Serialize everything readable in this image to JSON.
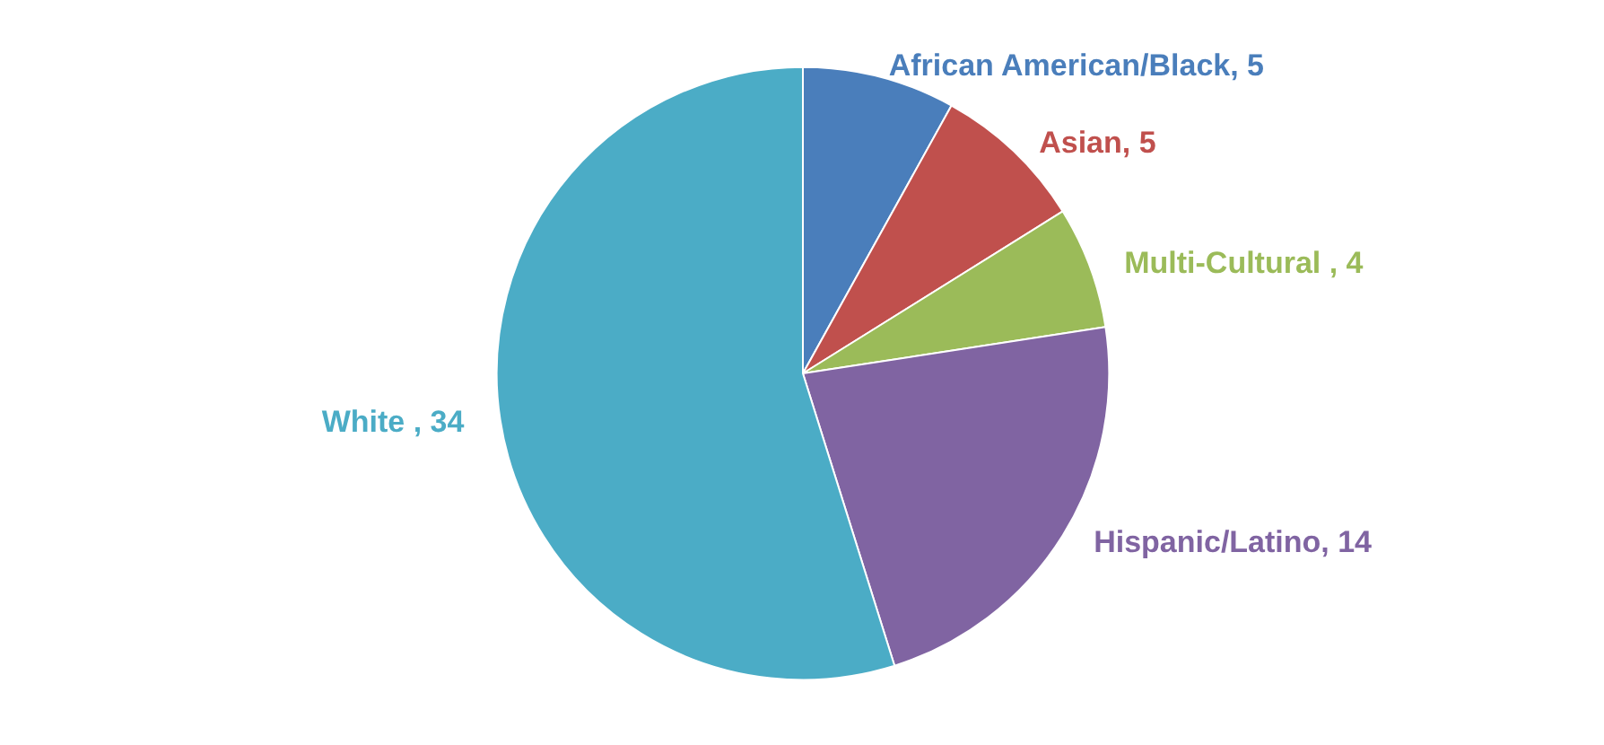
{
  "chart_data": {
    "type": "pie",
    "categories": [
      "African American/Black",
      "Asian",
      "Multi-Cultural ",
      "Hispanic/Latino",
      "White "
    ],
    "values": [
      5,
      5,
      4,
      14,
      34
    ],
    "colors": [
      "#4a7ebb",
      "#c0504d",
      "#9bbb59",
      "#8064a2",
      "#4bacc6"
    ],
    "value_labels": [
      ", 5",
      ", 5",
      ", 4",
      ", 14",
      ", 34"
    ]
  }
}
